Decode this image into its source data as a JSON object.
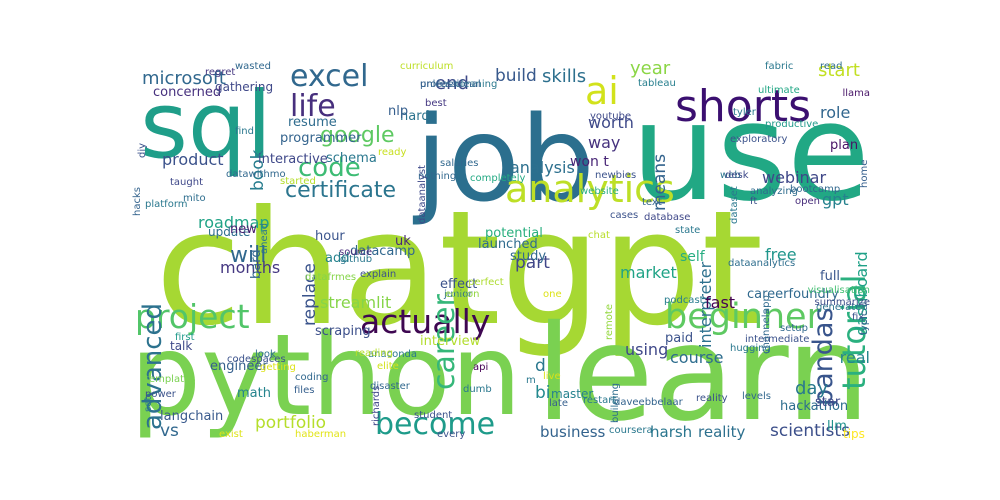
{
  "word_cloud": {
    "words": [
      {
        "text": "chatgpt",
        "color": "#a6d833"
      },
      {
        "text": "job",
        "color": "#2b6f8e"
      },
      {
        "text": "use",
        "color": "#21a884"
      },
      {
        "text": "python",
        "color": "#7ad151"
      },
      {
        "text": "learn",
        "color": "#7ad151"
      },
      {
        "text": "sql",
        "color": "#1f9e89"
      },
      {
        "text": "analytics",
        "color": "#bddf26"
      },
      {
        "text": "shorts",
        "color": "#3b0f70"
      },
      {
        "text": "beginner",
        "color": "#5ec962"
      },
      {
        "text": "actually",
        "color": "#3e0751"
      },
      {
        "text": "project",
        "color": "#52c569"
      },
      {
        "text": "become",
        "color": "#1e9b8a"
      },
      {
        "text": "career",
        "color": "#35b779"
      },
      {
        "text": "tutorial",
        "color": "#2ab07f"
      },
      {
        "text": "pandas",
        "color": "#39558c"
      },
      {
        "text": "excel",
        "color": "#31688e"
      },
      {
        "text": "life",
        "color": "#472f7d"
      },
      {
        "text": "ai",
        "color": "#d2e21b"
      },
      {
        "text": "code",
        "color": "#3dbc74"
      },
      {
        "text": "advanced",
        "color": "#2c728e"
      },
      {
        "text": "google",
        "color": "#5ec962"
      },
      {
        "text": "certificate",
        "color": "#2b758e"
      },
      {
        "text": "microsoft",
        "color": "#31688e"
      },
      {
        "text": "end",
        "color": "#3e4a89"
      },
      {
        "text": "build",
        "color": "#38598c"
      },
      {
        "text": "skills",
        "color": "#2d708e"
      },
      {
        "text": "year",
        "color": "#8bd646"
      },
      {
        "text": "start",
        "color": "#c2df23"
      },
      {
        "text": "role",
        "color": "#31668e"
      },
      {
        "text": "means",
        "color": "#33638d"
      },
      {
        "text": "worth",
        "color": "#3e4989"
      },
      {
        "text": "way",
        "color": "#46327e"
      },
      {
        "text": "analysis",
        "color": "#2d708e"
      },
      {
        "text": "webinar",
        "color": "#3f4788"
      },
      {
        "text": "gpt",
        "color": "#26828e"
      },
      {
        "text": "dashboard",
        "color": "#1fa187"
      },
      {
        "text": "will",
        "color": "#31688e"
      },
      {
        "text": "roadmap",
        "color": "#20a386"
      },
      {
        "text": "product",
        "color": "#3b528b"
      },
      {
        "text": "months",
        "color": "#453882"
      },
      {
        "text": "part",
        "color": "#404588"
      },
      {
        "text": "interpreter",
        "color": "#2d718e"
      },
      {
        "text": "free",
        "color": "#1f968b"
      },
      {
        "text": "fast",
        "color": "#440154"
      },
      {
        "text": "market",
        "color": "#20a386"
      },
      {
        "text": "replace",
        "color": "#3a538b"
      },
      {
        "text": "streamlit",
        "color": "#86d549"
      },
      {
        "text": "using",
        "color": "#3f4889"
      },
      {
        "text": "course",
        "color": "#2e6d8e"
      },
      {
        "text": "real",
        "color": "#25858e"
      },
      {
        "text": "day",
        "color": "#29798e"
      },
      {
        "text": "portfolio",
        "color": "#b5de2b"
      },
      {
        "text": "vs",
        "color": "#31688e"
      },
      {
        "text": "business",
        "color": "#33638d"
      },
      {
        "text": "harsh",
        "color": "#2a768e"
      },
      {
        "text": "reality",
        "color": "#2d708e"
      },
      {
        "text": "scientists",
        "color": "#3c4f8a"
      },
      {
        "text": "bi",
        "color": "#23898e"
      },
      {
        "text": "d",
        "color": "#2a778e"
      },
      {
        "text": "book",
        "color": "#287d8e"
      },
      {
        "text": "self",
        "color": "#26ad81"
      },
      {
        "text": "full",
        "color": "#39568c"
      },
      {
        "text": "won t",
        "color": "#482576"
      },
      {
        "text": "ft",
        "color": "#3b528b"
      },
      {
        "text": "plan",
        "color": "#471365"
      },
      {
        "text": "careerfoundry",
        "color": "#30698e"
      },
      {
        "text": "hackathon",
        "color": "#2e6e8e"
      },
      {
        "text": "paid",
        "color": "#3b528b"
      },
      {
        "text": "star",
        "color": "#3e4a89"
      },
      {
        "text": "llm",
        "color": "#20928c"
      },
      {
        "text": "tips",
        "color": "#fde725"
      },
      {
        "text": "scraping",
        "color": "#3c4f8a"
      },
      {
        "text": "langchain",
        "color": "#38598c"
      },
      {
        "text": "math",
        "color": "#25848e"
      },
      {
        "text": "engineer",
        "color": "#355f8d"
      },
      {
        "text": "talk",
        "color": "#3e4989"
      },
      {
        "text": "interview",
        "color": "#b2dd2d"
      },
      {
        "text": "master",
        "color": "#26828e"
      },
      {
        "text": "study",
        "color": "#31688e"
      },
      {
        "text": "potential",
        "color": "#29af7f"
      },
      {
        "text": "effect",
        "color": "#3b528b"
      },
      {
        "text": "launched",
        "color": "#2f6b8e"
      },
      {
        "text": "datacamp",
        "color": "#31688e"
      },
      {
        "text": "hour",
        "color": "#3a548c"
      },
      {
        "text": "add",
        "color": "#26828e"
      },
      {
        "text": "uk",
        "color": "#482878"
      },
      {
        "text": "update",
        "color": "#2e6e8e"
      },
      {
        "text": "new",
        "color": "#481f70"
      },
      {
        "text": "bard",
        "color": "#32648e"
      },
      {
        "text": "interactive",
        "color": "#3f4889"
      },
      {
        "text": "schema",
        "color": "#2a788e"
      },
      {
        "text": "hard",
        "color": "#2c738e"
      },
      {
        "text": "nlp",
        "color": "#355e8d"
      },
      {
        "text": "resume",
        "color": "#2f6c8e"
      },
      {
        "text": "programmer",
        "color": "#33638d"
      },
      {
        "text": "concerned",
        "color": "#46307e"
      },
      {
        "text": "gathering",
        "color": "#3f4889"
      },
      {
        "text": "regret",
        "color": "#453781"
      },
      {
        "text": "wasted",
        "color": "#31688e"
      },
      {
        "text": "curriculum",
        "color": "#bddf26"
      },
      {
        "text": "cleaning",
        "color": "#2a788e"
      },
      {
        "text": "unleash",
        "color": "#31688e"
      },
      {
        "text": "tableau",
        "color": "#277f8e"
      },
      {
        "text": "read",
        "color": "#2e6e8e"
      },
      {
        "text": "fabric",
        "color": "#2a788e"
      },
      {
        "text": "ultimate",
        "color": "#22a785"
      },
      {
        "text": "llama",
        "color": "#481668"
      },
      {
        "text": "tyler",
        "color": "#2a788e"
      },
      {
        "text": "productive",
        "color": "#1f9a8a"
      },
      {
        "text": "youtube",
        "color": "#3e4989"
      },
      {
        "text": "exploratory",
        "color": "#3b528b"
      },
      {
        "text": "web",
        "color": "#2b758e"
      },
      {
        "text": "analyzing",
        "color": "#2f6c8e"
      },
      {
        "text": "home",
        "color": "#355f8d"
      },
      {
        "text": "open",
        "color": "#472c7a"
      },
      {
        "text": "bootcamp",
        "color": "#31688e"
      },
      {
        "text": "generate",
        "color": "#2c718e"
      },
      {
        "text": "summarize",
        "color": "#3d4d8a"
      },
      {
        "text": "typical",
        "color": "#33638d"
      },
      {
        "text": "visualisation",
        "color": "#42be71"
      },
      {
        "text": "fix",
        "color": "#3a548c"
      },
      {
        "text": "setup",
        "color": "#31688e"
      },
      {
        "text": "hugging",
        "color": "#2a788e"
      },
      {
        "text": "intermediate",
        "color": "#3b528b"
      },
      {
        "text": "podcast",
        "color": "#287d8e"
      },
      {
        "text": "app",
        "color": "#2f6b8e"
      },
      {
        "text": "channels",
        "color": "#31688e"
      },
      {
        "text": "dataanalytics",
        "color": "#2e6e8e"
      },
      {
        "text": "cases",
        "color": "#3b528b"
      },
      {
        "text": "website",
        "color": "#27ad81"
      },
      {
        "text": "database",
        "color": "#3f4889"
      },
      {
        "text": "text",
        "color": "#33638d"
      },
      {
        "text": "chat",
        "color": "#b8de29"
      },
      {
        "text": "state",
        "color": "#2a788e"
      },
      {
        "text": "desk",
        "color": "#3e4989"
      },
      {
        "text": "dataset",
        "color": "#2a788e"
      },
      {
        "text": "newbies",
        "color": "#3b528b"
      },
      {
        "text": "completely",
        "color": "#23a983"
      },
      {
        "text": "professional",
        "color": "#355f8d"
      },
      {
        "text": "nothing",
        "color": "#31688e"
      },
      {
        "text": "salaries",
        "color": "#31688e"
      },
      {
        "text": "best",
        "color": "#453882"
      },
      {
        "text": "dataanalyst",
        "color": "#3e4989"
      },
      {
        "text": "ready",
        "color": "#c8e020"
      },
      {
        "text": "find",
        "color": "#2a788e"
      },
      {
        "text": "mito",
        "color": "#2e6e8e"
      },
      {
        "text": "taught",
        "color": "#3f4889"
      },
      {
        "text": "platform",
        "color": "#2a788e"
      },
      {
        "text": "diy",
        "color": "#3b528b"
      },
      {
        "text": "hacks",
        "color": "#33638d"
      },
      {
        "text": "datawithmo",
        "color": "#31688e"
      },
      {
        "text": "started",
        "color": "#b5de2b"
      },
      {
        "text": "ahead",
        "color": "#2a788e"
      },
      {
        "text": "github",
        "color": "#2a788e"
      },
      {
        "text": "datafrmes",
        "color": "#86d549"
      },
      {
        "text": "explain",
        "color": "#3b528b"
      },
      {
        "text": "source",
        "color": "#472a7a"
      },
      {
        "text": "junior",
        "color": "#2e6e8e"
      },
      {
        "text": "edition",
        "color": "#93d741"
      },
      {
        "text": "perfect",
        "color": "#addc30"
      },
      {
        "text": "one",
        "color": "#dde318"
      },
      {
        "text": "remote",
        "color": "#95d840"
      },
      {
        "text": "first",
        "color": "#1f9a8a"
      },
      {
        "text": "codespaces",
        "color": "#3b528b"
      },
      {
        "text": "anaconda",
        "color": "#2a788e"
      },
      {
        "text": "reading",
        "color": "#b5de2b"
      },
      {
        "text": "look",
        "color": "#2e6e8e"
      },
      {
        "text": "api",
        "color": "#440154"
      },
      {
        "text": "getting",
        "color": "#dde318"
      },
      {
        "text": "templates",
        "color": "#7ad151"
      },
      {
        "text": "power",
        "color": "#3b528b"
      },
      {
        "text": "set",
        "color": "#2a788e"
      },
      {
        "text": "coding",
        "color": "#31688e"
      },
      {
        "text": "files",
        "color": "#355f8d"
      },
      {
        "text": "disaster",
        "color": "#31688e"
      },
      {
        "text": "richards",
        "color": "#3f4889"
      },
      {
        "text": "elite",
        "color": "#d2e21b"
      },
      {
        "text": "live",
        "color": "#d8e219"
      },
      {
        "text": "m",
        "color": "#2a788e"
      },
      {
        "text": "building",
        "color": "#2e6e8e"
      },
      {
        "text": "reality",
        "color": "#3b528b"
      },
      {
        "text": "levels",
        "color": "#31688e"
      },
      {
        "text": "student",
        "color": "#3b528b"
      },
      {
        "text": "dumb",
        "color": "#2a788e"
      },
      {
        "text": "daveebbelaar",
        "color": "#33638d"
      },
      {
        "text": "restart",
        "color": "#2a788e"
      },
      {
        "text": "late",
        "color": "#355f8d"
      },
      {
        "text": "coursera",
        "color": "#2a788e"
      },
      {
        "text": "every",
        "color": "#3b528b"
      },
      {
        "text": "exist",
        "color": "#dde318"
      },
      {
        "text": "haberman",
        "color": "#e2e418"
      },
      {
        "text": "create",
        "color": "#7ad151"
      },
      {
        "text": "fastest",
        "color": "#3f4889"
      }
    ]
  }
}
